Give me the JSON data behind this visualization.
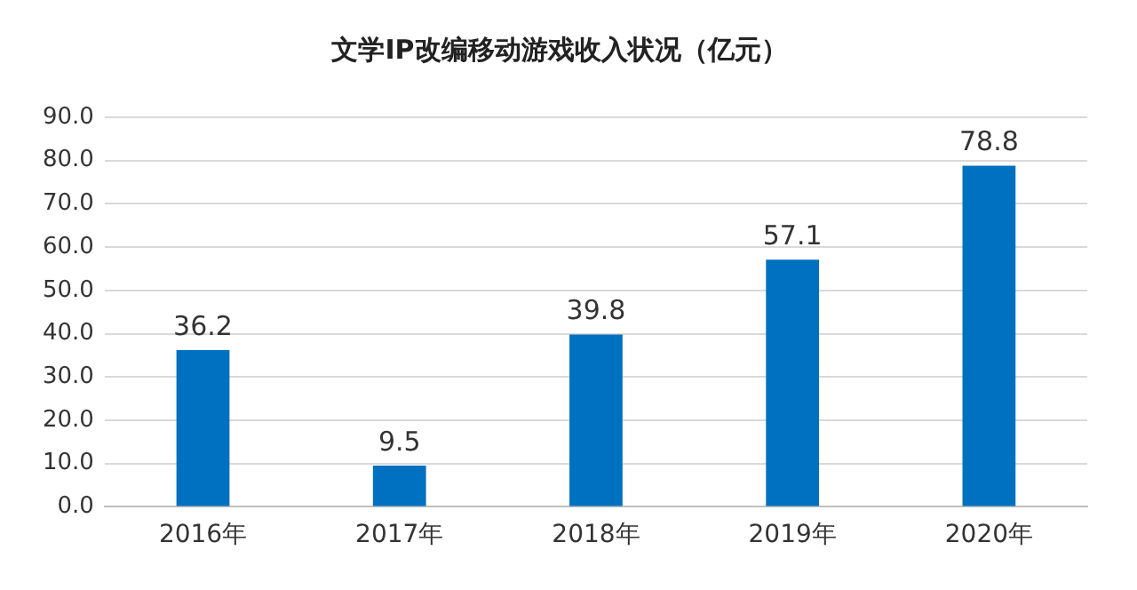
{
  "chart_data": {
    "type": "bar",
    "title": "文学IP改编移动游戏收入状况（亿元）",
    "categories": [
      "2016年",
      "2017年",
      "2018年",
      "2019年",
      "2020年"
    ],
    "values": [
      36.2,
      9.5,
      39.8,
      57.1,
      78.8
    ],
    "color": "#0070c0",
    "ylim": [
      0,
      90
    ],
    "yticks": [
      {
        "value": 0,
        "label": "0.0"
      },
      {
        "value": 10,
        "label": "10.0"
      },
      {
        "value": 20,
        "label": "20.0"
      },
      {
        "value": 30,
        "label": "30.0"
      },
      {
        "value": 40,
        "label": "40.0"
      },
      {
        "value": 50,
        "label": "50.0"
      },
      {
        "value": 60,
        "label": "60.0"
      },
      {
        "value": 70,
        "label": "70.0"
      },
      {
        "value": 80,
        "label": "80.0"
      },
      {
        "value": 90,
        "label": "90.0"
      }
    ],
    "grid": "y",
    "data_labels": true,
    "legend": false
  }
}
